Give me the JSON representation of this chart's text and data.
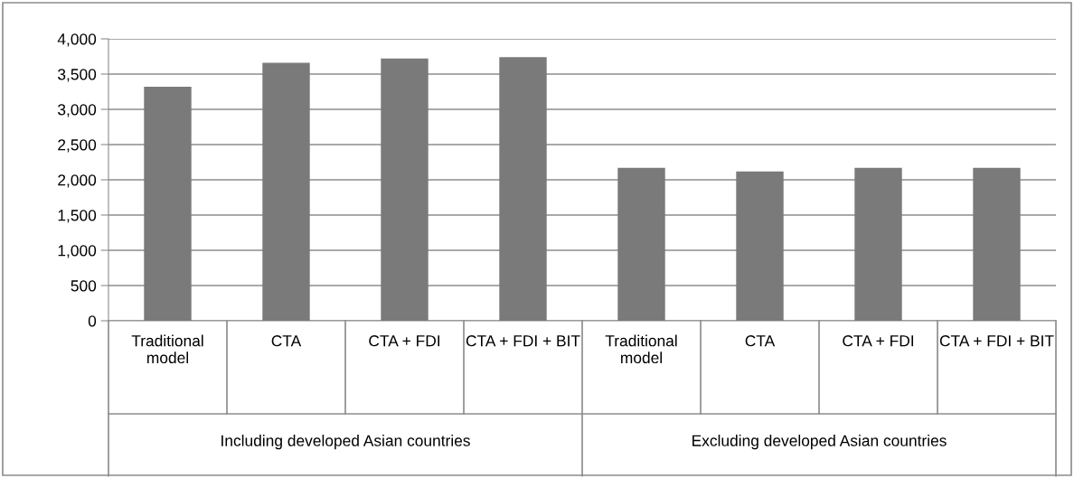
{
  "chart_data": {
    "type": "bar",
    "categories": [
      "Traditional model",
      "CTA",
      "CTA + FDI",
      "CTA + FDI + BIT",
      "Traditional model",
      "CTA",
      "CTA + FDI",
      "CTA + FDI + BIT"
    ],
    "values": [
      3320,
      3660,
      3720,
      3740,
      2170,
      2120,
      2170,
      2170
    ],
    "color": "#7a7a7a",
    "ylim": [
      0,
      4000
    ],
    "yticks": [
      {
        "value": 0,
        "label": "0"
      },
      {
        "value": 500,
        "label": "500"
      },
      {
        "value": 1000,
        "label": "1,000"
      },
      {
        "value": 1500,
        "label": "1,500"
      },
      {
        "value": 2000,
        "label": "2,000"
      },
      {
        "value": 2500,
        "label": "2,500"
      },
      {
        "value": 3000,
        "label": "3,000"
      },
      {
        "value": 3500,
        "label": "3,500"
      },
      {
        "value": 4000,
        "label": "4,000"
      }
    ],
    "grid": "y",
    "annotations": [
      "Including developed Asian countries",
      "Excluding developed Asian countries"
    ]
  }
}
